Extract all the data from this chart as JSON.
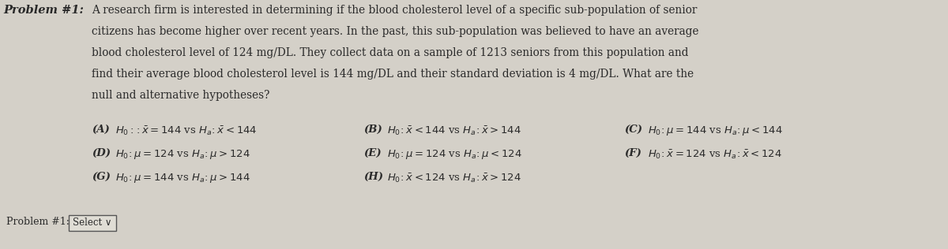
{
  "bg_color": "#d4d0c8",
  "title_bold": "Problem #1:",
  "problem_lines": [
    "A research firm is interested in determining if the blood cholesterol level of a specific sub-population of senior",
    "citizens has become higher over recent years. In the past, this sub-population was believed to have an average",
    "blood cholesterol level of 124 mg/DL. They collect data on a sample of 1213 seniors from this population and",
    "find their average blood cholesterol level is 144 mg/DL and their standard deviation is 4 mg/DL. What are the",
    "null and alternative hypotheses?"
  ],
  "row1": [
    {
      "label": "(A)",
      "text": "$H_0:\\!:\\bar{x} = 144$ vs $H_a\\!:\\bar{x} < 144$"
    },
    {
      "label": "(B)",
      "text": "$H_0\\!:\\bar{x} < 144$ vs $H_a\\!:\\bar{x} > 144$"
    },
    {
      "label": "(C)",
      "text": "$H_0\\!:\\mu = 144$ vs $H_a\\!:\\mu < 144$"
    }
  ],
  "row2": [
    {
      "label": "(D)",
      "text": "$H_0\\!:\\mu = 124$ vs $H_a\\!:\\mu > 124$"
    },
    {
      "label": "(E)",
      "text": "$H_0\\!:\\mu = 124$ vs $H_a\\!:\\mu < 124$"
    },
    {
      "label": "(F)",
      "text": "$H_0\\!:\\bar{x} = 124$ vs $H_a\\!:\\bar{x} < 124$"
    }
  ],
  "row3": [
    {
      "label": "(G)",
      "text": "$H_0\\!:\\mu = 144$ vs $H_a\\!:\\mu > 144$"
    },
    {
      "label": "(H)",
      "text": "$H_0\\!:\\bar{x} < 124$ vs $H_a\\!:\\bar{x} > 124$"
    }
  ],
  "footer_label": "Problem #1:",
  "footer_select": "Select ✓",
  "text_color": "#2a2a2a",
  "font_size_body": 9.8,
  "font_size_title": 10.5,
  "font_size_options": 9.5,
  "font_size_footer": 9.0
}
